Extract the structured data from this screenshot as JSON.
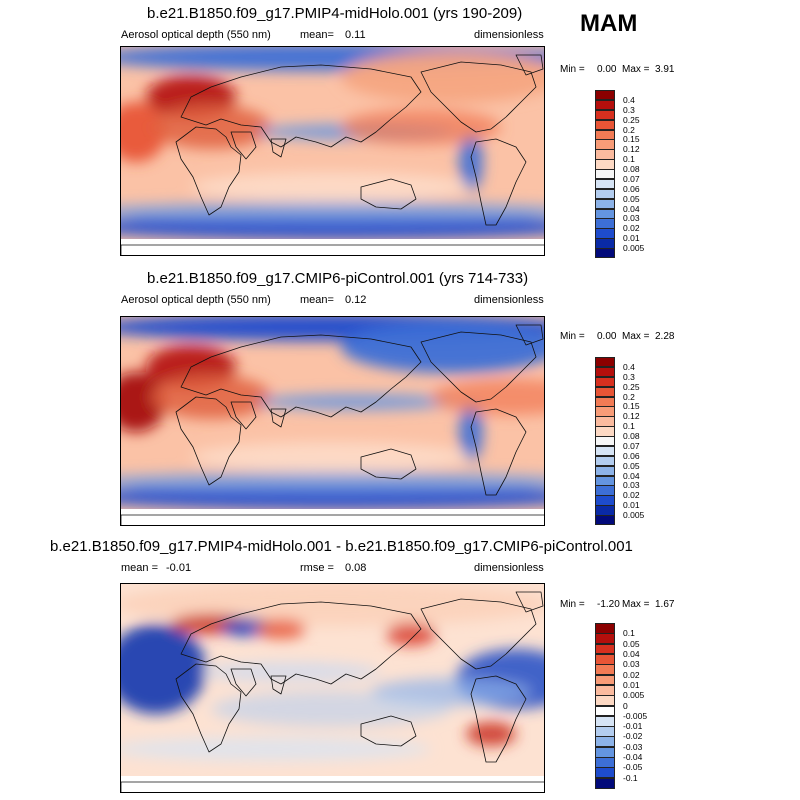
{
  "season": "MAM",
  "chart_data": [
    {
      "type": "heatmap",
      "title": "b.e21.B1850.f09_g17.PMIP4-midHolo.001 (yrs 190-209)",
      "left_label": "Aerosol optical depth (550 nm)",
      "mean_label": "mean=",
      "mean_value": "0.11",
      "units": "dimensionless",
      "min_label": "Min =",
      "min_value": "0.00",
      "max_label": "Max =",
      "max_value": "3.91",
      "colorbar_levels": [
        "0.4",
        "0.3",
        "0.25",
        "0.2",
        "0.15",
        "0.12",
        "0.1",
        "0.08",
        "0.07",
        "0.06",
        "0.05",
        "0.04",
        "0.03",
        "0.02",
        "0.01",
        "0.005"
      ],
      "colorbar_colors": [
        "#8b0000",
        "#b40f0c",
        "#d7301f",
        "#e85536",
        "#f27b55",
        "#f89c78",
        "#fbbb9f",
        "#fdd9c4",
        "#f7f7f7",
        "#d6e4f5",
        "#b3cdef",
        "#8db3e8",
        "#6495e0",
        "#3d6fd6",
        "#1e4ccd",
        "#0a2aa6",
        "#020a7a"
      ],
      "features": "Sahara/Middle East/Central Asia dust maximum; low values over polar oceans and Southern Ocean"
    },
    {
      "type": "heatmap",
      "title": "b.e21.B1850.f09_g17.CMIP6-piControl.001 (yrs 714-733)",
      "left_label": "Aerosol optical depth (550 nm)",
      "mean_label": "mean=",
      "mean_value": "0.12",
      "units": "dimensionless",
      "min_label": "Min =",
      "min_value": "0.00",
      "max_label": "Max =",
      "max_value": "2.28",
      "colorbar_levels": [
        "0.4",
        "0.3",
        "0.25",
        "0.2",
        "0.15",
        "0.12",
        "0.1",
        "0.08",
        "0.07",
        "0.06",
        "0.05",
        "0.04",
        "0.03",
        "0.02",
        "0.01",
        "0.005"
      ],
      "colorbar_colors": [
        "#8b0000",
        "#b40f0c",
        "#d7301f",
        "#e85536",
        "#f27b55",
        "#f89c78",
        "#fbbb9f",
        "#fdd9c4",
        "#f7f7f7",
        "#d6e4f5",
        "#b3cdef",
        "#8db3e8",
        "#6495e0",
        "#3d6fd6",
        "#1e4ccd",
        "#0a2aa6",
        "#020a7a"
      ],
      "features": "Strong Saharan dust plume extending across tropical Atlantic; low values at high northern latitudes"
    },
    {
      "type": "heatmap",
      "title": "b.e21.B1850.f09_g17.PMIP4-midHolo.001 - b.e21.B1850.f09_g17.CMIP6-piControl.001",
      "left_label": "mean =",
      "mean_value": "-0.01",
      "rmse_label": "rmse =",
      "rmse_value": "0.08",
      "units": "dimensionless",
      "min_label": "Min =",
      "min_value": "-1.20",
      "max_label": "Max =",
      "max_value": "1.67",
      "colorbar_levels": [
        "0.1",
        "0.05",
        "0.04",
        "0.03",
        "0.02",
        "0.01",
        "0.005",
        "0",
        "-0.005",
        "-0.01",
        "-0.02",
        "-0.03",
        "-0.04",
        "-0.05",
        "-0.1"
      ],
      "colorbar_colors": [
        "#8b0000",
        "#b40f0c",
        "#d7301f",
        "#e85536",
        "#f27b55",
        "#f89c78",
        "#fbbb9f",
        "#fdd9c4",
        "#ffffff",
        "#d6e4f5",
        "#b3cdef",
        "#8db3e8",
        "#6495e0",
        "#3d6fd6",
        "#1e4ccd",
        "#020a7a"
      ],
      "features": "Large negative difference over Sahara and tropical Atlantic; positive differences over East Asia and southern South America"
    }
  ]
}
